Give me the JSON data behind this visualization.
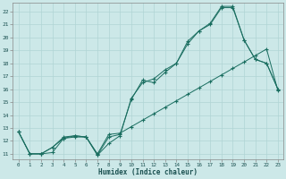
{
  "xlabel": "Humidex (Indice chaleur)",
  "background_color": "#cce8e8",
  "line_color": "#1a6e60",
  "xlim": [
    -0.5,
    23.5
  ],
  "ylim": [
    10.6,
    22.7
  ],
  "xticks": [
    0,
    1,
    2,
    3,
    4,
    5,
    6,
    7,
    8,
    9,
    10,
    11,
    12,
    13,
    14,
    15,
    16,
    17,
    18,
    19,
    20,
    21,
    22,
    23
  ],
  "yticks": [
    11,
    12,
    13,
    14,
    15,
    16,
    17,
    18,
    19,
    20,
    21,
    22
  ],
  "line1_x": [
    0,
    1,
    2,
    3,
    4,
    5,
    6,
    7,
    8,
    9,
    10,
    11,
    12,
    13,
    14,
    15,
    16,
    17,
    18,
    19,
    20,
    21,
    22,
    23
  ],
  "line1_y": [
    12.7,
    11.0,
    11.0,
    11.1,
    12.2,
    12.3,
    12.3,
    11.0,
    12.5,
    12.6,
    13.1,
    13.6,
    14.1,
    14.6,
    15.1,
    15.6,
    16.1,
    16.6,
    17.1,
    17.6,
    18.1,
    18.6,
    19.1,
    15.9
  ],
  "line2_x": [
    0,
    1,
    2,
    3,
    4,
    5,
    6,
    7,
    8,
    9,
    10,
    11,
    12,
    13,
    14,
    15,
    16,
    17,
    18,
    19,
    20,
    21,
    22,
    23
  ],
  "line2_y": [
    12.7,
    11.0,
    11.0,
    11.5,
    12.2,
    12.4,
    12.3,
    10.9,
    11.8,
    12.4,
    15.3,
    16.5,
    16.8,
    17.5,
    18.0,
    19.7,
    20.5,
    21.1,
    22.4,
    22.4,
    19.8,
    18.3,
    18.0,
    16.0
  ],
  "line3_x": [
    0,
    1,
    2,
    3,
    4,
    5,
    6,
    7,
    8,
    9,
    10,
    11,
    12,
    13,
    14,
    15,
    16,
    17,
    18,
    19,
    20,
    21,
    22,
    23
  ],
  "line3_y": [
    12.7,
    11.0,
    11.0,
    11.5,
    12.3,
    12.4,
    12.3,
    10.9,
    12.3,
    12.5,
    15.2,
    16.7,
    16.5,
    17.3,
    18.0,
    19.5,
    20.5,
    21.0,
    22.3,
    22.3,
    19.8,
    18.3,
    18.0,
    16.0
  ]
}
